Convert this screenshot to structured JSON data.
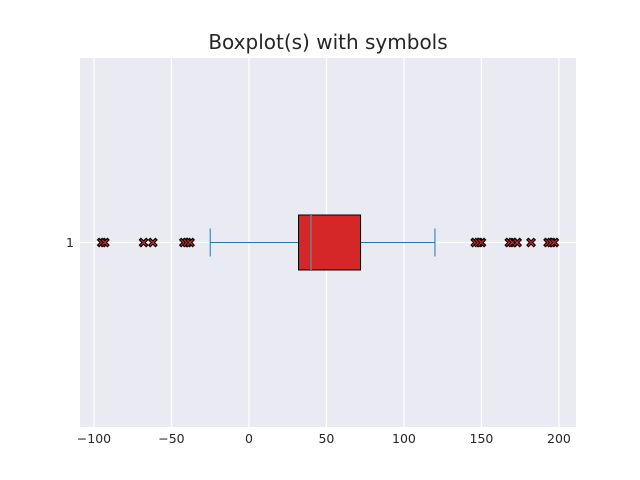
{
  "colors": {
    "background": "#eaeaf2",
    "grid": "#ffffff",
    "box_fill": "#d62728",
    "box_edge": "#000000",
    "whisker": "#1f77b4",
    "median": "#7f7f7f",
    "flier_fill": "#d62728",
    "flier_edge": "#000000"
  },
  "chart_data": {
    "type": "boxplot",
    "orientation": "horizontal",
    "title": "Boxplot(s) with symbols",
    "xlabel": "",
    "ylabel": "",
    "xlim": [
      -109,
      211
    ],
    "xticks": [
      -100,
      -50,
      0,
      50,
      100,
      150,
      200
    ],
    "xtick_labels": [
      "−100",
      "−50",
      "0",
      "50",
      "100",
      "150",
      "200"
    ],
    "yticks": [
      "1"
    ],
    "grid": true,
    "boxes": [
      {
        "label": "1",
        "whisker_low": -25,
        "q1": 32,
        "median": 40,
        "q3": 72,
        "whisker_high": 120,
        "flier_marker": "X",
        "fliers": [
          -95,
          -93,
          -68,
          -62,
          -42,
          -40,
          -38,
          146,
          148,
          150,
          168,
          170,
          173,
          182,
          193,
          195,
          197
        ]
      }
    ]
  }
}
